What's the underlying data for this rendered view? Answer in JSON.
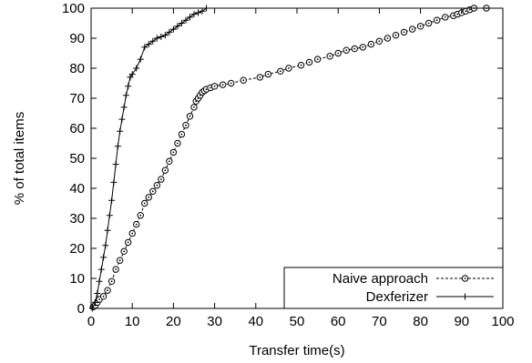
{
  "chart_data": {
    "type": "line",
    "xlabel": "Transfer time(s)",
    "ylabel": "% of total items",
    "xlim": [
      0,
      100
    ],
    "ylim": [
      0,
      100
    ],
    "x_ticks": [
      0,
      10,
      20,
      30,
      40,
      50,
      60,
      70,
      80,
      90,
      100
    ],
    "y_ticks": [
      0,
      10,
      20,
      30,
      40,
      50,
      60,
      70,
      80,
      90,
      100
    ],
    "grid": false,
    "legend_position": "bottom-right",
    "series": [
      {
        "name": "Naive approach",
        "line_style": "dashed",
        "marker": "circle-dot",
        "x": [
          0.5,
          1.0,
          1.5,
          2.0,
          3.0,
          4.0,
          5.0,
          6.0,
          7.0,
          8.0,
          9.0,
          10.0,
          11.0,
          12.0,
          13.0,
          14.0,
          15.0,
          16.0,
          17.0,
          18.0,
          19.0,
          20.0,
          21.0,
          22.0,
          23.0,
          24.0,
          25.0,
          25.5,
          26.0,
          26.5,
          27.0,
          27.5,
          28.0,
          29.0,
          30.0,
          32.0,
          34.0,
          37.0,
          41.0,
          43.0,
          46.0,
          48.0,
          51.0,
          53.0,
          55.0,
          58.0,
          60.0,
          62.0,
          64.0,
          66.0,
          68.0,
          70.0,
          72.0,
          74.0,
          76.0,
          78.0,
          80.0,
          82.0,
          84.0,
          86.0,
          88.0,
          89.0,
          90.0,
          91.0,
          92.0,
          93.0,
          96.0
        ],
        "values": [
          0.5,
          1,
          2,
          3,
          4,
          6,
          9,
          13,
          16,
          19,
          22,
          25,
          28,
          31,
          35,
          37,
          39,
          41,
          43,
          46,
          49,
          52,
          55,
          58,
          61,
          64,
          67,
          69,
          70,
          71,
          72,
          72.5,
          73,
          73.5,
          74,
          74.5,
          75,
          76,
          77,
          78,
          79,
          80,
          81,
          82,
          83,
          84,
          85,
          86,
          86.5,
          87,
          88,
          89,
          90,
          91,
          92,
          93,
          94,
          95,
          96,
          97,
          97.5,
          98,
          98.5,
          99,
          99.5,
          100,
          100
        ]
      },
      {
        "name": "Dexferizer",
        "line_style": "solid",
        "marker": "plus",
        "x": [
          0.3,
          1.0,
          1.5,
          2.0,
          2.5,
          3.0,
          3.5,
          4.0,
          4.5,
          5.0,
          5.5,
          6.0,
          6.5,
          7.0,
          7.5,
          8.0,
          8.5,
          9.0,
          9.5,
          10.0,
          11.0,
          12.0,
          13.0,
          14.0,
          15.0,
          16.0,
          17.0,
          18.0,
          19.0,
          20.0,
          21.0,
          22.0,
          23.0,
          24.0,
          25.0,
          26.0,
          27.0,
          28.0
        ],
        "values": [
          0,
          2,
          5,
          9,
          13,
          17,
          21,
          26,
          31,
          36,
          42,
          48,
          54,
          59,
          63,
          67,
          71,
          74,
          77,
          78,
          80,
          83,
          87,
          88,
          89,
          90,
          90.5,
          91,
          92,
          93,
          94,
          95,
          96,
          97,
          98,
          98.5,
          99,
          100
        ]
      }
    ]
  }
}
